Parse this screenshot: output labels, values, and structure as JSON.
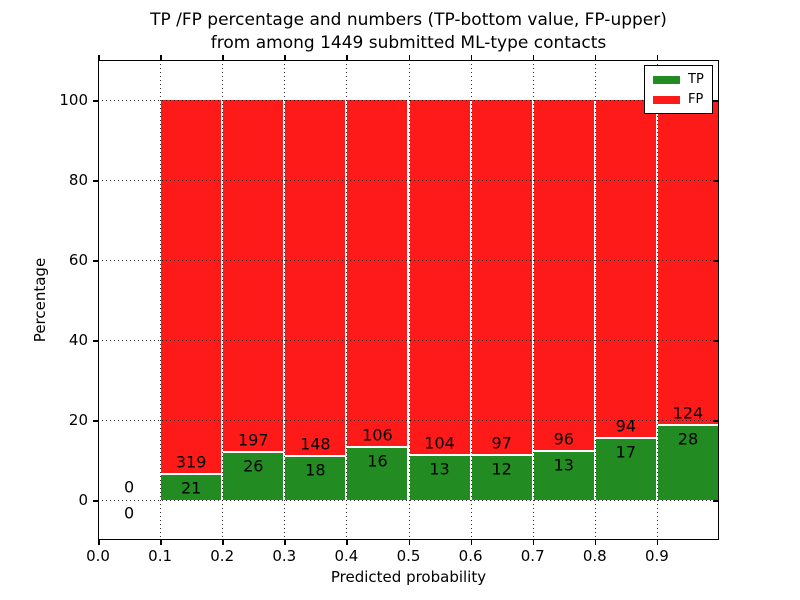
{
  "figure": {
    "title_line1": "TP /FP percentage and numbers (TP-bottom value, FP-upper)",
    "title_line2": "from among 1449 submitted ML-type contacts"
  },
  "axes": {
    "xlabel": "Predicted probability",
    "ylabel": "Percentage",
    "x_tick_labels": [
      "0.0",
      "0.1",
      "0.2",
      "0.3",
      "0.4",
      "0.5",
      "0.6",
      "0.7",
      "0.8",
      "0.9"
    ],
    "y_tick_values": [
      0,
      20,
      40,
      60,
      80,
      100
    ],
    "x_range": [
      0.0,
      1.0
    ],
    "y_range_pct": [
      -10,
      110
    ],
    "grid_style": "dotted"
  },
  "legend": {
    "position": "upper-right",
    "items": [
      {
        "label": "TP",
        "color": "#228b22"
      },
      {
        "label": "FP",
        "color": "#ff1a1a"
      }
    ]
  },
  "colors": {
    "tp": "#228b22",
    "fp": "#ff1a1a",
    "bar_edge": "#ffffff",
    "grid": "#000000",
    "text": "#000000",
    "background": "#ffffff"
  },
  "chart_data": {
    "type": "bar",
    "stacked": true,
    "normalized_to": 100,
    "title": "TP /FP percentage and numbers (TP-bottom value, FP-upper) from among 1449 submitted ML-type contacts",
    "xlabel": "Predicted probability",
    "ylabel": "Percentage",
    "total_contacts": 1449,
    "bin_width": 0.1,
    "series_names": [
      "TP",
      "FP"
    ],
    "bins": [
      {
        "x_start": 0.0,
        "x_end": 0.1,
        "tp_count": 0,
        "fp_count": 0,
        "tp_pct": 0,
        "fp_pct": 0,
        "has_bar": false
      },
      {
        "x_start": 0.1,
        "x_end": 0.2,
        "tp_count": 21,
        "fp_count": 319,
        "tp_pct": 6.18,
        "fp_pct": 93.82,
        "has_bar": true
      },
      {
        "x_start": 0.2,
        "x_end": 0.3,
        "tp_count": 26,
        "fp_count": 197,
        "tp_pct": 11.66,
        "fp_pct": 88.34,
        "has_bar": true
      },
      {
        "x_start": 0.3,
        "x_end": 0.4,
        "tp_count": 18,
        "fp_count": 148,
        "tp_pct": 10.84,
        "fp_pct": 89.16,
        "has_bar": true
      },
      {
        "x_start": 0.4,
        "x_end": 0.5,
        "tp_count": 16,
        "fp_count": 106,
        "tp_pct": 13.11,
        "fp_pct": 86.89,
        "has_bar": true
      },
      {
        "x_start": 0.5,
        "x_end": 0.6,
        "tp_count": 13,
        "fp_count": 104,
        "tp_pct": 11.11,
        "fp_pct": 88.89,
        "has_bar": true
      },
      {
        "x_start": 0.6,
        "x_end": 0.7,
        "tp_count": 12,
        "fp_count": 97,
        "tp_pct": 11.01,
        "fp_pct": 88.99,
        "has_bar": true
      },
      {
        "x_start": 0.7,
        "x_end": 0.8,
        "tp_count": 13,
        "fp_count": 96,
        "tp_pct": 11.93,
        "fp_pct": 88.07,
        "has_bar": true
      },
      {
        "x_start": 0.8,
        "x_end": 0.9,
        "tp_count": 17,
        "fp_count": 94,
        "tp_pct": 15.32,
        "fp_pct": 84.68,
        "has_bar": true
      },
      {
        "x_start": 0.9,
        "x_end": 1.0,
        "tp_count": 28,
        "fp_count": 124,
        "tp_pct": 18.42,
        "fp_pct": 81.58,
        "has_bar": true
      }
    ]
  }
}
